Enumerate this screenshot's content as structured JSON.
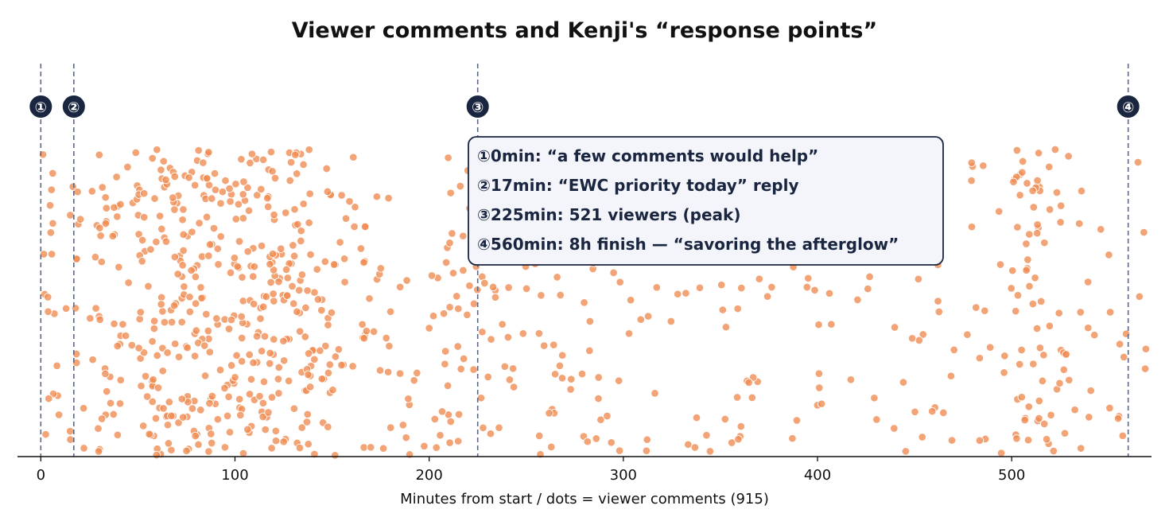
{
  "chart_data": {
    "type": "scatter",
    "title": "Viewer comments and Kenji's “response points”",
    "xlabel": "Minutes from start / dots = viewer comments (915)",
    "ylabel": "",
    "xlim": [
      -12,
      572
    ],
    "ylim": [
      0,
      1
    ],
    "xticks": [
      0,
      100,
      200,
      300,
      400,
      500
    ],
    "xtick_labels": [
      "0",
      "100",
      "200",
      "300",
      "400",
      "500"
    ],
    "y_axis_visible": false,
    "grid": false,
    "point_count": 915,
    "point_color": "#f08a50",
    "point_edge_color": "#ffffff",
    "marker_color": "#1a2540",
    "density_profile": [
      {
        "x_from": 0,
        "x_to": 20,
        "count": 30
      },
      {
        "x_from": 20,
        "x_to": 50,
        "count": 55
      },
      {
        "x_from": 50,
        "x_to": 100,
        "count": 200
      },
      {
        "x_from": 100,
        "x_to": 150,
        "count": 190
      },
      {
        "x_from": 150,
        "x_to": 200,
        "count": 55
      },
      {
        "x_from": 200,
        "x_to": 240,
        "count": 70
      },
      {
        "x_from": 240,
        "x_to": 300,
        "count": 80
      },
      {
        "x_from": 300,
        "x_to": 400,
        "count": 80
      },
      {
        "x_from": 400,
        "x_to": 500,
        "count": 55
      },
      {
        "x_from": 500,
        "x_to": 530,
        "count": 75
      },
      {
        "x_from": 530,
        "x_to": 570,
        "count": 25
      }
    ],
    "markers": [
      {
        "x": 0,
        "label": "①"
      },
      {
        "x": 17,
        "label": "②"
      },
      {
        "x": 225,
        "label": "③"
      },
      {
        "x": 560,
        "label": "④"
      }
    ],
    "annotations": [
      "①0min: “a few comments would help”",
      "②17min: “EWC priority today” reply",
      "③225min: 521 viewers (peak)",
      "④560min: 8h finish — “savoring the afterglow”"
    ],
    "legend_placement": "top-center"
  }
}
